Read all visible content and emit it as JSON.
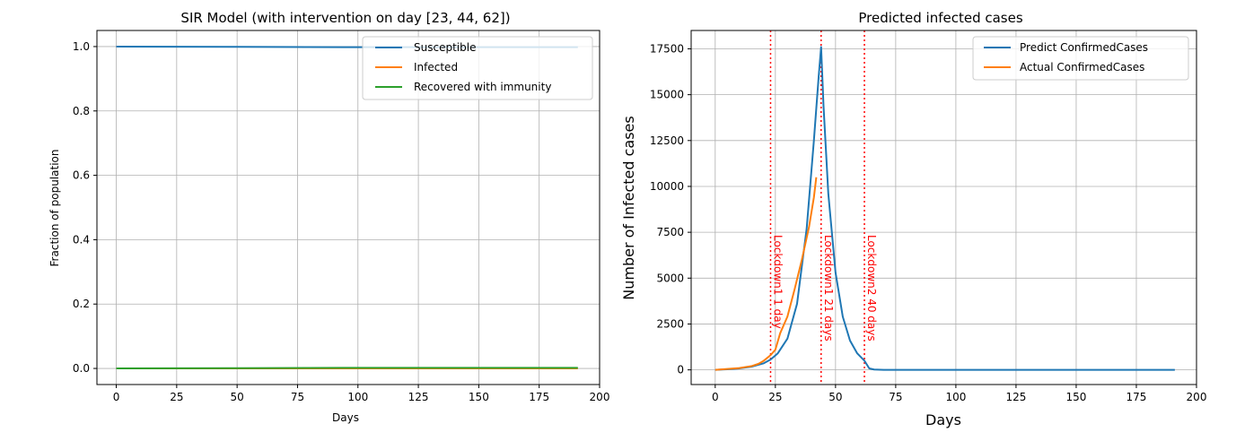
{
  "chart_data": [
    {
      "type": "line",
      "title": "SIR Model (with intervention on day [23, 44, 62])",
      "xlabel": "Days",
      "ylabel": "Fraction of population",
      "xlim": [
        -8,
        200
      ],
      "ylim": [
        -0.05,
        1.05
      ],
      "xticks": [
        0,
        25,
        50,
        75,
        100,
        125,
        150,
        175,
        200
      ],
      "yticks": [
        0.0,
        0.2,
        0.4,
        0.6,
        0.8,
        1.0
      ],
      "xtick_labels": [
        "0",
        "25",
        "50",
        "75",
        "100",
        "125",
        "150",
        "175",
        "200"
      ],
      "ytick_labels": [
        "0.0",
        "0.2",
        "0.4",
        "0.6",
        "0.8",
        "1.0"
      ],
      "grid": true,
      "legend_position": "upper-right",
      "series": [
        {
          "name": "Susceptible",
          "color": "#1f77b4",
          "x": [
            0,
            50,
            100,
            150,
            191
          ],
          "y": [
            1.0,
            0.999,
            0.998,
            0.998,
            0.998
          ]
        },
        {
          "name": "Infected",
          "color": "#ff7f0e",
          "x": [
            0,
            50,
            100,
            150,
            191
          ],
          "y": [
            0.0,
            0.0,
            0.0,
            0.0,
            0.0
          ]
        },
        {
          "name": "Recovered with immunity",
          "color": "#2ca02c",
          "x": [
            0,
            50,
            100,
            150,
            191
          ],
          "y": [
            0.0,
            0.001,
            0.002,
            0.002,
            0.002
          ]
        }
      ]
    },
    {
      "type": "line",
      "title": "Predicted infected cases",
      "xlabel": "Days",
      "ylabel": "Number of Infected cases",
      "xlim": [
        -10,
        200
      ],
      "ylim": [
        -800,
        18500
      ],
      "xticks": [
        0,
        25,
        50,
        75,
        100,
        125,
        150,
        175,
        200
      ],
      "yticks": [
        0,
        2500,
        5000,
        7500,
        10000,
        12500,
        15000,
        17500
      ],
      "xtick_labels": [
        "0",
        "25",
        "50",
        "75",
        "100",
        "125",
        "150",
        "175",
        "200"
      ],
      "ytick_labels": [
        "0",
        "2500",
        "5000",
        "7500",
        "10000",
        "12500",
        "15000",
        "17500"
      ],
      "grid": true,
      "legend_position": "upper-right",
      "series": [
        {
          "name": "Predict ConfirmedCases",
          "color": "#1f77b4",
          "x": [
            0,
            5,
            10,
            15,
            20,
            23,
            26,
            30,
            34,
            38,
            41,
            43,
            44,
            45,
            47,
            50,
            53,
            56,
            59,
            62,
            64,
            66,
            70,
            100,
            150,
            191
          ],
          "y": [
            0,
            30,
            80,
            170,
            350,
            560,
            900,
            1700,
            3600,
            7700,
            12500,
            16000,
            17600,
            14400,
            9600,
            5300,
            2900,
            1600,
            900,
            500,
            80,
            20,
            0,
            0,
            0,
            0
          ]
        },
        {
          "name": "Actual ConfirmedCases",
          "color": "#ff7f0e",
          "x": [
            0,
            5,
            10,
            15,
            18,
            20,
            23,
            25,
            27,
            30,
            33,
            36,
            39,
            41,
            42
          ],
          "y": [
            0,
            50,
            100,
            200,
            330,
            480,
            800,
            1100,
            2000,
            2900,
            4400,
            6000,
            7800,
            9400,
            10500
          ]
        }
      ],
      "vlines": [
        {
          "x": 23,
          "color": "#ff0000",
          "label": "Lockdown1 1 day"
        },
        {
          "x": 44,
          "color": "#ff0000",
          "label": "Lockdown1 21 days"
        },
        {
          "x": 62,
          "color": "#ff0000",
          "label": "Lockdown2 40 days"
        }
      ]
    }
  ]
}
